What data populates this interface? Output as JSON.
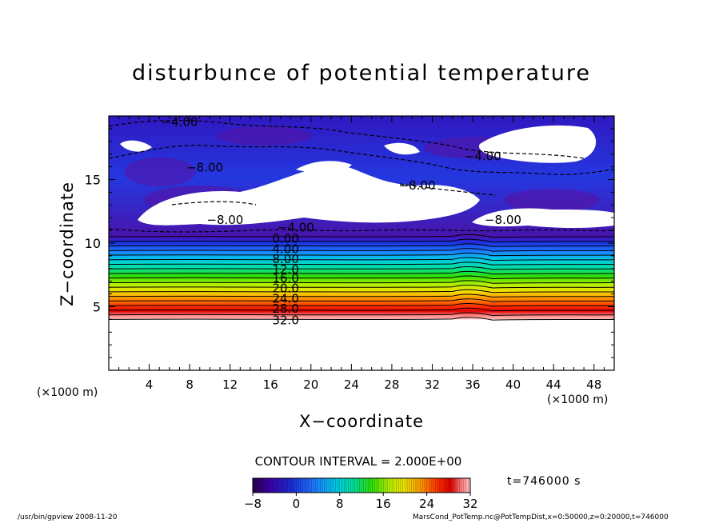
{
  "title": "disturbunce of potential temperature",
  "xlabel": "X−coordinate",
  "ylabel": "Z−coordinate",
  "x_unit_left": "(×1000 m)",
  "x_unit_right": "(×1000 m)",
  "contour_interval_text": "CONTOUR INTERVAL = 2.000E+00",
  "time_text": "t=746000 s",
  "footer_left": "/usr/bin/gpview   2008-11-20",
  "footer_right": "MarsCond_PotTemp.nc@PotTempDist,x=0:50000,z=0:20000,t=746000",
  "chart_data": {
    "type": "heatmap",
    "title": "disturbunce of potential temperature",
    "xlabel": "X-coordinate",
    "ylabel": "Z-coordinate",
    "x_unit": "×1000 m",
    "xlim": [
      0,
      50
    ],
    "ylim": [
      0,
      20
    ],
    "x_ticks": [
      "4",
      "8",
      "12",
      "16",
      "20",
      "24",
      "28",
      "32",
      "36",
      "40",
      "44",
      "48"
    ],
    "y_ticks": [
      "5",
      "10",
      "15"
    ],
    "contour_interval": 2.0,
    "colorbar": {
      "min": -8,
      "max": 32,
      "ticks": [
        "-8",
        "0",
        "8",
        "16",
        "24",
        "32"
      ],
      "colormap": [
        "#2a0050",
        "#3a00a8",
        "#1a2dd8",
        "#1e78ff",
        "#00c8e8",
        "#00e0a0",
        "#30e000",
        "#b8f000",
        "#f0e000",
        "#ff9000",
        "#ff3000",
        "#e00000",
        "#ff8080",
        "#ffc8c8"
      ]
    },
    "stratified_layer": {
      "z_top": 10.5,
      "z_bottom": 4.0,
      "value_top": -4,
      "value_bottom": 32
    },
    "contour_labels": [
      {
        "text": "−4.00",
        "x": 7.0,
        "z": 19.6
      },
      {
        "text": "−8.00",
        "x": 9.5,
        "z": 16.0
      },
      {
        "text": "−4.00",
        "x": 37.0,
        "z": 16.9
      },
      {
        "text": "−8.00",
        "x": 30.5,
        "z": 14.6
      },
      {
        "text": "−8.00",
        "x": 11.5,
        "z": 11.9
      },
      {
        "text": "−8.00",
        "x": 39.0,
        "z": 11.9
      },
      {
        "text": "−4.00",
        "x": 18.5,
        "z": 11.3
      },
      {
        "text": "0.00",
        "x": 17.5,
        "z": 10.4
      },
      {
        "text": "4.00",
        "x": 17.5,
        "z": 9.6
      },
      {
        "text": "8.00",
        "x": 17.5,
        "z": 8.8
      },
      {
        "text": "12.0",
        "x": 17.5,
        "z": 8.0
      },
      {
        "text": "16.0",
        "x": 17.5,
        "z": 7.3
      },
      {
        "text": "20.0",
        "x": 17.5,
        "z": 6.5
      },
      {
        "text": "24.0",
        "x": 17.5,
        "z": 5.7
      },
      {
        "text": "28.0",
        "x": 17.5,
        "z": 4.9
      },
      {
        "text": "32.0",
        "x": 17.5,
        "z": 4.0
      }
    ]
  }
}
